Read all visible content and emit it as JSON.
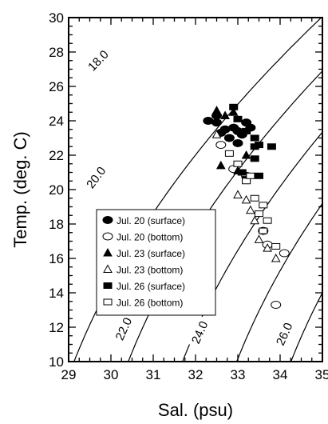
{
  "chart_data": {
    "type": "scatter",
    "title": "",
    "xlabel": "Sal. (psu)",
    "ylabel": "Temp. (deg. C)",
    "xlim": [
      29,
      35
    ],
    "ylim": [
      10,
      30
    ],
    "xticks": [
      29,
      30,
      31,
      32,
      33,
      34,
      35
    ],
    "yticks": [
      10,
      12,
      14,
      16,
      18,
      20,
      22,
      24,
      26,
      28,
      30
    ],
    "xtick_labels": [
      "29",
      "30",
      "31",
      "32",
      "33",
      "34",
      "35"
    ],
    "ytick_labels": [
      "10",
      "12",
      "14",
      "16",
      "18",
      "20",
      "22",
      "24",
      "26",
      "28",
      "30"
    ],
    "grid": false,
    "legend_position": "lower-left inside",
    "contour_levels": [
      {
        "label": "18.0",
        "show_label": true
      },
      {
        "label": "19.0",
        "show_label": false
      },
      {
        "label": "20.0",
        "show_label": true
      },
      {
        "label": "21.0",
        "show_label": false
      },
      {
        "label": "22.0",
        "show_label": true
      },
      {
        "label": "23.0",
        "show_label": false
      },
      {
        "label": "24.0",
        "show_label": true
      },
      {
        "label": "25.0",
        "show_label": false
      },
      {
        "label": "26.0",
        "show_label": true
      },
      {
        "label": "27.0",
        "show_label": false
      }
    ],
    "contour_label_positions": [
      {
        "label": "18.0",
        "x": 29.7,
        "y": 27.5
      },
      {
        "label": "20.0",
        "x": 29.65,
        "y": 20.7
      },
      {
        "label": "22.0",
        "x": 30.3,
        "y": 11.9
      },
      {
        "label": "24.0",
        "x": 32.1,
        "y": 11.7
      },
      {
        "label": "26.0",
        "x": 34.1,
        "y": 11.6
      }
    ],
    "series": [
      {
        "name": "Jul. 20 (surface)",
        "marker": "circle-filled",
        "points": [
          [
            32.3,
            24.0
          ],
          [
            32.5,
            24.3
          ],
          [
            32.7,
            23.5
          ],
          [
            32.9,
            23.6
          ],
          [
            33.1,
            23.2
          ],
          [
            33.2,
            23.9
          ],
          [
            32.8,
            23.0
          ],
          [
            33.0,
            22.7
          ],
          [
            33.3,
            23.6
          ],
          [
            32.5,
            23.9
          ],
          [
            32.6,
            23.3
          ],
          [
            33.0,
            23.4
          ]
        ]
      },
      {
        "name": "Jul. 20 (bottom)",
        "marker": "circle-open",
        "points": [
          [
            32.6,
            22.6
          ],
          [
            33.6,
            17.6
          ],
          [
            33.7,
            16.8
          ],
          [
            34.1,
            16.3
          ],
          [
            33.9,
            13.3
          ],
          [
            33.2,
            20.8
          ],
          [
            32.9,
            21.2
          ]
        ]
      },
      {
        "name": "Jul. 23 (surface)",
        "marker": "triangle-filled",
        "points": [
          [
            32.7,
            24.3
          ],
          [
            32.9,
            24.5
          ],
          [
            32.6,
            21.4
          ],
          [
            33.0,
            21.1
          ],
          [
            33.2,
            22.0
          ],
          [
            32.5,
            24.6
          ]
        ]
      },
      {
        "name": "Jul. 23 (bottom)",
        "marker": "triangle-open",
        "points": [
          [
            32.5,
            23.2
          ],
          [
            33.0,
            19.7
          ],
          [
            33.2,
            19.4
          ],
          [
            33.3,
            18.8
          ],
          [
            33.5,
            17.1
          ],
          [
            33.7,
            16.6
          ],
          [
            33.9,
            16.0
          ],
          [
            33.4,
            18.2
          ]
        ]
      },
      {
        "name": "Jul. 26 (surface)",
        "marker": "square-filled",
        "points": [
          [
            32.9,
            24.8
          ],
          [
            33.0,
            24.1
          ],
          [
            33.2,
            23.4
          ],
          [
            33.4,
            23.0
          ],
          [
            33.5,
            22.6
          ],
          [
            33.8,
            22.5
          ],
          [
            33.4,
            21.8
          ],
          [
            33.1,
            21.0
          ],
          [
            33.5,
            20.8
          ],
          [
            33.2,
            20.6
          ],
          [
            33.4,
            22.5
          ]
        ]
      },
      {
        "name": "Jul. 26 (bottom)",
        "marker": "square-open",
        "points": [
          [
            32.8,
            22.1
          ],
          [
            33.0,
            21.5
          ],
          [
            33.2,
            20.5
          ],
          [
            33.4,
            19.5
          ],
          [
            33.6,
            19.1
          ],
          [
            33.5,
            18.6
          ],
          [
            33.7,
            18.2
          ],
          [
            33.6,
            17.6
          ],
          [
            33.9,
            16.7
          ],
          [
            33.3,
            20.8
          ]
        ]
      }
    ]
  }
}
